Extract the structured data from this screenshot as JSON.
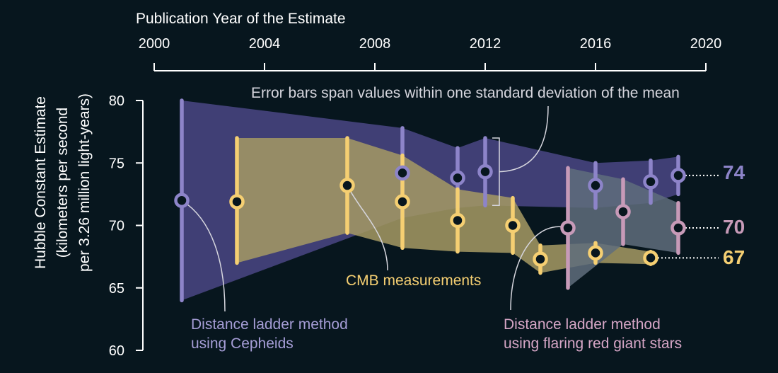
{
  "chart_data": {
    "type": "scatter",
    "title": "",
    "xlabel": "Publication Year of the Estimate",
    "ylabel_lines": [
      "Hubble Constant Estimate",
      "(kilometers per second",
      "per 3.26 million light-years)"
    ],
    "xlim": [
      2000,
      2020
    ],
    "ylim": [
      60,
      80
    ],
    "x_ticks": [
      2000,
      2004,
      2008,
      2012,
      2016,
      2020
    ],
    "y_ticks": [
      60,
      65,
      70,
      75,
      80
    ],
    "axis_position": "x-axis on top",
    "grid": false,
    "annotations": {
      "error_bars": "Error bars span values within one standard deviation of the mean",
      "cmb": "CMB measurements",
      "cepheids_line1": "Distance ladder method",
      "cepheids_line2": "using Cepheids",
      "trgb_line1": "Distance ladder method",
      "trgb_line2": "using flaring red giant stars"
    },
    "end_labels": {
      "cepheids": "74",
      "trgb": "70",
      "cmb": "67"
    },
    "series": [
      {
        "key": "cepheids",
        "color": "#8d84c9",
        "band_color": "#4a4785",
        "points": [
          {
            "x": 2001,
            "y": 72.0,
            "lo": 64.0,
            "hi": 80.0
          },
          {
            "x": 2009,
            "y": 74.2,
            "lo": 70.6,
            "hi": 77.8
          },
          {
            "x": 2011,
            "y": 73.8,
            "lo": 71.4,
            "hi": 76.2
          },
          {
            "x": 2012,
            "y": 74.3,
            "lo": 71.6,
            "hi": 77.0
          },
          {
            "x": 2016,
            "y": 73.2,
            "lo": 71.4,
            "hi": 75.0
          },
          {
            "x": 2018,
            "y": 73.5,
            "lo": 71.8,
            "hi": 75.2
          },
          {
            "x": 2019,
            "y": 74.0,
            "lo": 72.5,
            "hi": 75.5
          }
        ]
      },
      {
        "key": "cmb",
        "color": "#f5cf72",
        "band_color": "#a69a64",
        "points": [
          {
            "x": 2003,
            "y": 71.9,
            "lo": 67.0,
            "hi": 77.0
          },
          {
            "x": 2007,
            "y": 73.2,
            "lo": 69.4,
            "hi": 77.0
          },
          {
            "x": 2009,
            "y": 71.9,
            "lo": 68.2,
            "hi": 75.6
          },
          {
            "x": 2011,
            "y": 70.4,
            "lo": 67.9,
            "hi": 72.9
          },
          {
            "x": 2013,
            "y": 70.0,
            "lo": 67.8,
            "hi": 72.2
          },
          {
            "x": 2014,
            "y": 67.3,
            "lo": 66.2,
            "hi": 68.4
          },
          {
            "x": 2016,
            "y": 67.8,
            "lo": 67.0,
            "hi": 68.6
          },
          {
            "x": 2018,
            "y": 67.4,
            "lo": 66.9,
            "hi": 67.9
          }
        ]
      },
      {
        "key": "trgb",
        "color": "#c79ab8",
        "band_color": "#5f6d7c",
        "points": [
          {
            "x": 2015,
            "y": 69.8,
            "lo": 65.0,
            "hi": 74.6
          },
          {
            "x": 2017,
            "y": 71.1,
            "lo": 68.5,
            "hi": 73.7
          },
          {
            "x": 2019,
            "y": 69.8,
            "lo": 67.8,
            "hi": 71.8
          }
        ]
      }
    ]
  }
}
